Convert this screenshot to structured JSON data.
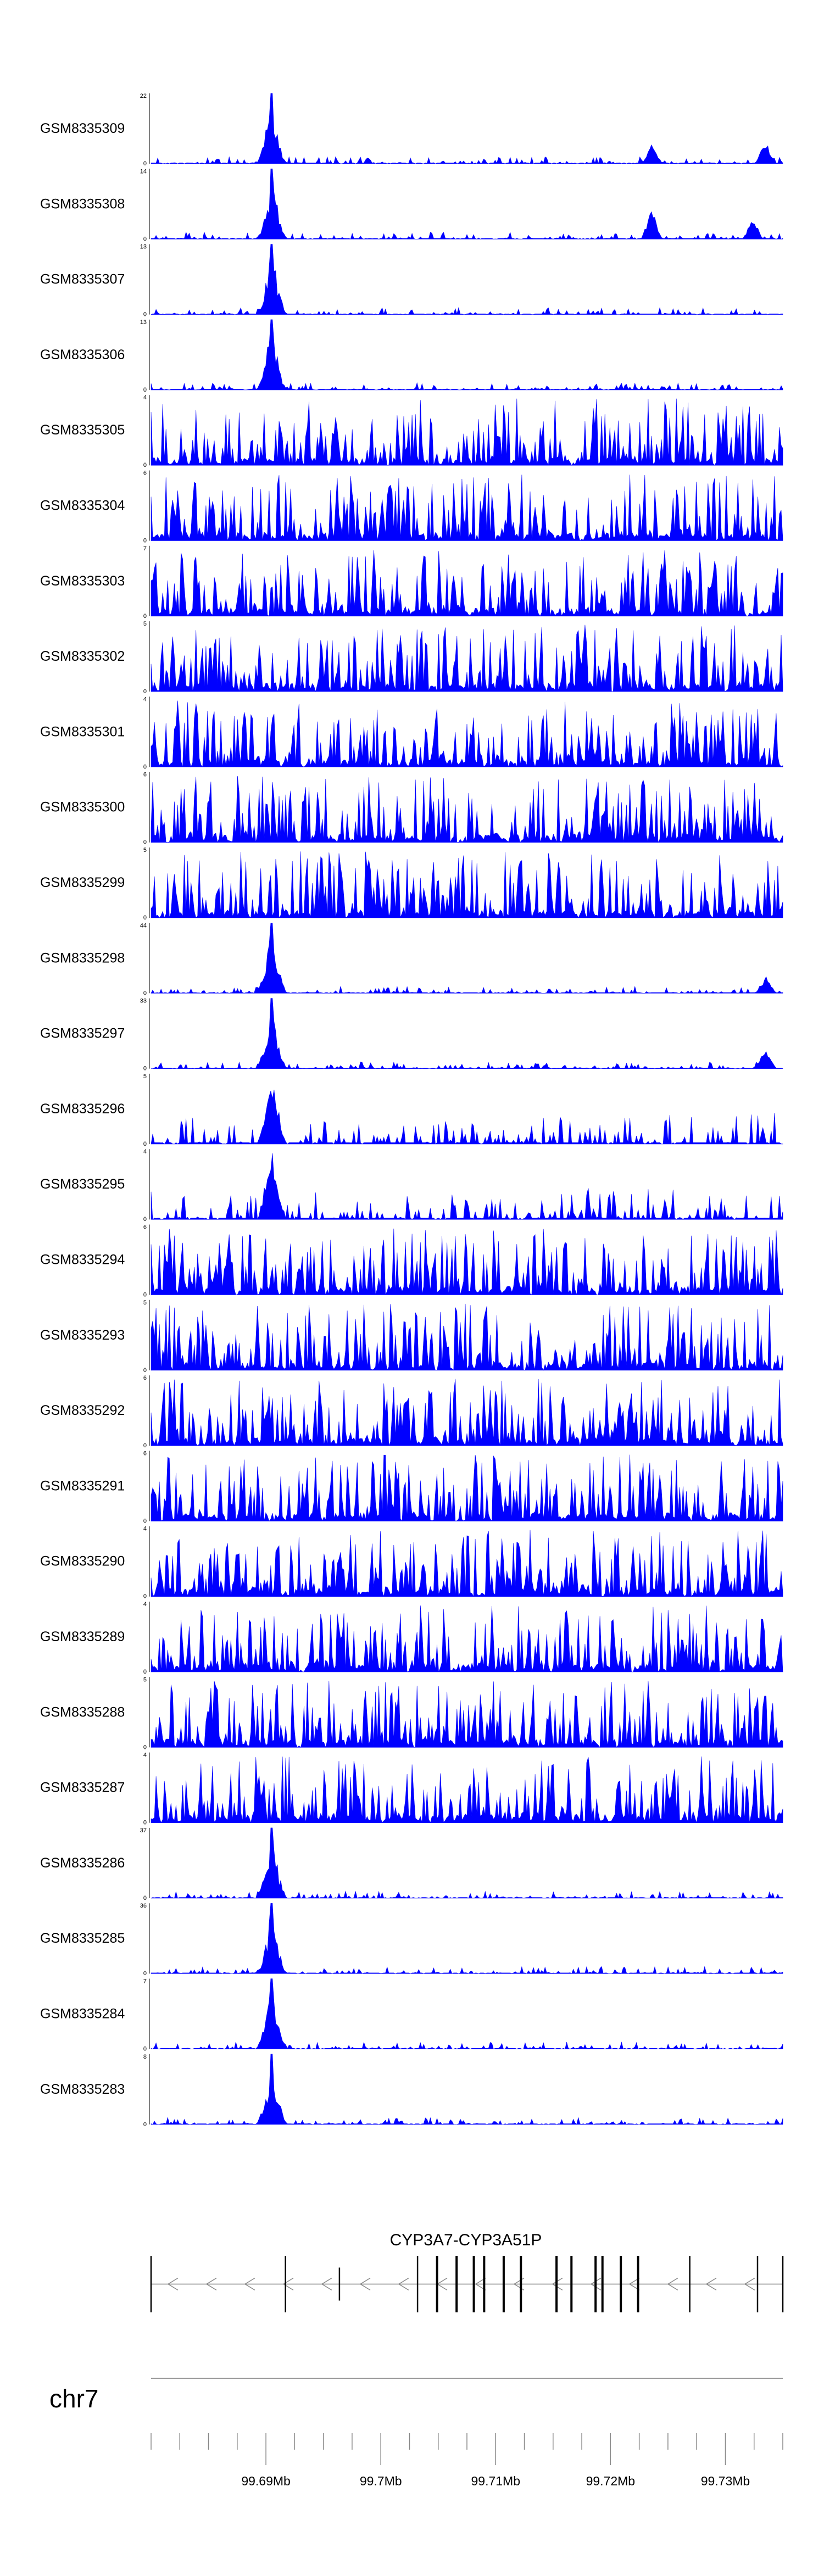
{
  "chart_data": {
    "type": "area",
    "chromosome": "chr7",
    "region": [
      99680000,
      99735000
    ],
    "color": "#0000ff",
    "tracks": [
      {
        "name": "GSM8335309",
        "ylim": [
          0,
          22
        ],
        "profile": "hi",
        "extra": [
          [
            99.7236,
            0.28
          ],
          [
            99.7335,
            0.35
          ]
        ],
        "seed": 11
      },
      {
        "name": "GSM8335308",
        "ylim": [
          0,
          14
        ],
        "profile": "hi",
        "extra": [
          [
            99.7236,
            0.45
          ],
          [
            99.7324,
            0.3
          ]
        ],
        "seed": 12
      },
      {
        "name": "GSM8335307",
        "ylim": [
          0,
          13
        ],
        "profile": "hi",
        "extra": [],
        "seed": 13
      },
      {
        "name": "GSM8335306",
        "ylim": [
          0,
          13
        ],
        "profile": "hi",
        "extra": [],
        "seed": 14
      },
      {
        "name": "GSM8335305",
        "ylim": [
          0,
          4
        ],
        "profile": "noise",
        "extra": [],
        "seed": 15
      },
      {
        "name": "GSM8335304",
        "ylim": [
          0,
          6
        ],
        "profile": "noise",
        "extra": [],
        "seed": 16
      },
      {
        "name": "GSM8335303",
        "ylim": [
          0,
          7
        ],
        "profile": "noise",
        "extra": [],
        "seed": 17
      },
      {
        "name": "GSM8335302",
        "ylim": [
          0,
          5
        ],
        "profile": "noise",
        "extra": [],
        "seed": 18
      },
      {
        "name": "GSM8335301",
        "ylim": [
          0,
          4
        ],
        "profile": "noise",
        "extra": [],
        "seed": 19
      },
      {
        "name": "GSM8335300",
        "ylim": [
          0,
          6
        ],
        "profile": "noise",
        "extra": [],
        "seed": 20
      },
      {
        "name": "GSM8335299",
        "ylim": [
          0,
          5
        ],
        "profile": "noise",
        "extra": [],
        "seed": 21
      },
      {
        "name": "GSM8335298",
        "ylim": [
          0,
          44
        ],
        "profile": "hi",
        "extra": [
          [
            99.7335,
            0.25
          ]
        ],
        "seed": 22
      },
      {
        "name": "GSM8335297",
        "ylim": [
          0,
          33
        ],
        "profile": "hi",
        "extra": [
          [
            99.7335,
            0.35
          ]
        ],
        "seed": 23
      },
      {
        "name": "GSM8335296",
        "ylim": [
          0,
          5
        ],
        "profile": "med",
        "extra": [],
        "seed": 24
      },
      {
        "name": "GSM8335295",
        "ylim": [
          0,
          4
        ],
        "profile": "med",
        "extra": [],
        "seed": 25
      },
      {
        "name": "GSM8335294",
        "ylim": [
          0,
          6
        ],
        "profile": "noise",
        "extra": [],
        "seed": 26
      },
      {
        "name": "GSM8335293",
        "ylim": [
          0,
          5
        ],
        "profile": "noise",
        "extra": [],
        "seed": 27
      },
      {
        "name": "GSM8335292",
        "ylim": [
          0,
          6
        ],
        "profile": "noise",
        "extra": [],
        "seed": 28
      },
      {
        "name": "GSM8335291",
        "ylim": [
          0,
          6
        ],
        "profile": "noise",
        "extra": [],
        "seed": 29
      },
      {
        "name": "GSM8335290",
        "ylim": [
          0,
          4
        ],
        "profile": "noise",
        "extra": [],
        "seed": 30
      },
      {
        "name": "GSM8335289",
        "ylim": [
          0,
          4
        ],
        "profile": "noise",
        "extra": [],
        "seed": 31
      },
      {
        "name": "GSM8335288",
        "ylim": [
          0,
          5
        ],
        "profile": "noise",
        "extra": [],
        "seed": 32
      },
      {
        "name": "GSM8335287",
        "ylim": [
          0,
          4
        ],
        "profile": "noise",
        "extra": [],
        "seed": 33
      },
      {
        "name": "GSM8335286",
        "ylim": [
          0,
          37
        ],
        "profile": "hi",
        "extra": [],
        "seed": 34
      },
      {
        "name": "GSM8335285",
        "ylim": [
          0,
          36
        ],
        "profile": "hi",
        "extra": [],
        "seed": 35
      },
      {
        "name": "GSM8335284",
        "ylim": [
          0,
          7
        ],
        "profile": "hi",
        "extra": [],
        "seed": 36
      },
      {
        "name": "GSM8335283",
        "ylim": [
          0,
          8
        ],
        "profile": "hi",
        "extra": [],
        "seed": 37
      }
    ],
    "peak_center_mb": 99.6905,
    "gene": {
      "name": "CYP3A7-CYP3A51P",
      "strand": "-",
      "start_mb": 99.68,
      "end_mb": 99.735,
      "exons_mb": [
        99.68,
        99.6917,
        99.6964,
        99.7032,
        99.7049,
        99.7066,
        99.7081,
        99.709,
        99.7107,
        99.7122,
        99.7153,
        99.7166,
        99.7187,
        99.7193,
        99.7209,
        99.7224,
        99.7269,
        99.7328,
        99.735
      ]
    },
    "axis": {
      "tick_labels": [
        "99.69Mb",
        "99.7Mb",
        "99.71Mb",
        "99.72Mb",
        "99.73Mb"
      ],
      "major_ticks_mb": [
        99.69,
        99.7,
        99.71,
        99.72,
        99.73
      ],
      "minor_step_mb": 0.0025
    }
  }
}
